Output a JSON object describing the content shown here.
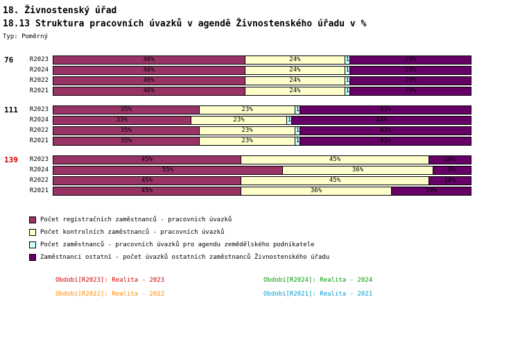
{
  "header": {
    "title": "18. Živnostenský úřad",
    "subtitle": "18.13 Struktura pracovních úvazků v agendě Živnostenského úřadu v %",
    "type_label": "Typ: Poměrný"
  },
  "chart_data": {
    "type": "bar",
    "orientation": "horizontal",
    "stacked": true,
    "unit": "%",
    "xlim": [
      0,
      100
    ],
    "grid": false,
    "series": [
      {
        "key": "registracni",
        "name": "Počet registračních zaměstnanců - pracovních úvazků",
        "color": "#993366"
      },
      {
        "key": "kontrolni",
        "name": "Počet kontrolních zaměstnanců - pracovních úvazků",
        "color": "#FFFFCC"
      },
      {
        "key": "zemedelsky",
        "name": "Počet zaměstnanců - pracovních úvazků pro agendu zemědělského podnikatele",
        "color": "#CCFFFF"
      },
      {
        "key": "ostatni",
        "name": "Zaměstnanci ostatní - počet úvazků ostatních zaměstnanců Živnostenského úřadu",
        "color": "#660066"
      }
    ],
    "groups": [
      {
        "label": "76",
        "label_color": "#000000",
        "rows": [
          {
            "period": "R2023",
            "values": [
              46,
              24,
              1,
              29
            ]
          },
          {
            "period": "R2024",
            "values": [
              46,
              24,
              1,
              29
            ]
          },
          {
            "period": "R2022",
            "values": [
              46,
              24,
              1,
              29
            ]
          },
          {
            "period": "R2021",
            "values": [
              46,
              24,
              1,
              29
            ]
          }
        ]
      },
      {
        "label": "111",
        "label_color": "#000000",
        "rows": [
          {
            "period": "R2023",
            "values": [
              35,
              23,
              1,
              41
            ]
          },
          {
            "period": "R2024",
            "values": [
              33,
              23,
              1,
              43
            ]
          },
          {
            "period": "R2022",
            "values": [
              35,
              23,
              1,
              41
            ]
          },
          {
            "period": "R2021",
            "values": [
              35,
              23,
              1,
              41
            ]
          }
        ]
      },
      {
        "label": "139",
        "label_color": "#CC0000",
        "rows": [
          {
            "period": "R2023",
            "values": [
              45,
              45,
              0,
              10
            ]
          },
          {
            "period": "R2024",
            "values": [
              55,
              36,
              0,
              9
            ]
          },
          {
            "period": "R2022",
            "values": [
              45,
              45,
              0,
              10
            ]
          },
          {
            "period": "R2021",
            "values": [
              45,
              36,
              0,
              19
            ]
          }
        ]
      }
    ]
  },
  "legend": [
    {
      "label": "Počet registračních zaměstnanců - pracovních úvazků",
      "color": "#993366"
    },
    {
      "label": "Počet kontrolních zaměstnanců - pracovních úvazků",
      "color": "#FFFFCC"
    },
    {
      "label": "Počet zaměstnanců - pracovních úvazků pro agendu zemědělského podnikatele",
      "color": "#CCFFFF"
    },
    {
      "label": "Zaměstnanci ostatní - počet úvazků ostatních zaměstnanců Živnostenského úřadu",
      "color": "#660066"
    }
  ],
  "periods": [
    {
      "label": "Období[R2023]: Realita - 2023",
      "color": "#CC0000"
    },
    {
      "label": "Období[R2024]: Realita - 2024",
      "color": "#009900"
    },
    {
      "label": "Období[R2022]: Realita - 2022",
      "color": "#FF8800"
    },
    {
      "label": "Období[R2021]: Realita - 2021",
      "color": "#0099CC"
    }
  ]
}
